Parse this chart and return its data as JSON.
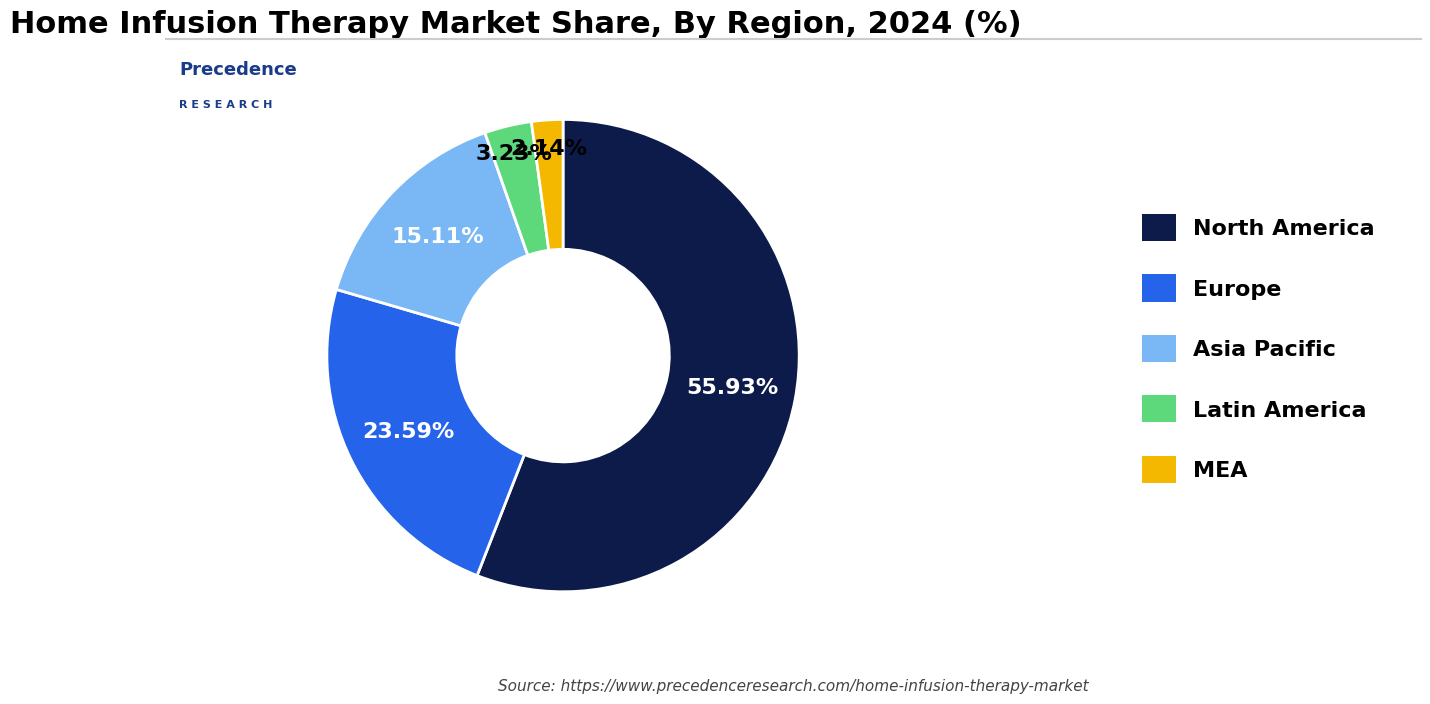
{
  "title": "Home Infusion Therapy Market Share, By Region, 2024 (%)",
  "labels": [
    "North America",
    "Europe",
    "Asia Pacific",
    "Latin America",
    "MEA"
  ],
  "values": [
    55.93,
    23.59,
    15.11,
    3.23,
    2.14
  ],
  "colors": [
    "#0d1b4b",
    "#2563eb",
    "#7ab8f5",
    "#5dd87a",
    "#f5b800"
  ],
  "label_colors": [
    "white",
    "white",
    "white",
    "black",
    "black"
  ],
  "source": "Source: https://www.precedenceresearch.com/home-infusion-therapy-market",
  "background_color": "#ffffff",
  "title_fontsize": 22,
  "label_fontsize": 16,
  "legend_fontsize": 16
}
